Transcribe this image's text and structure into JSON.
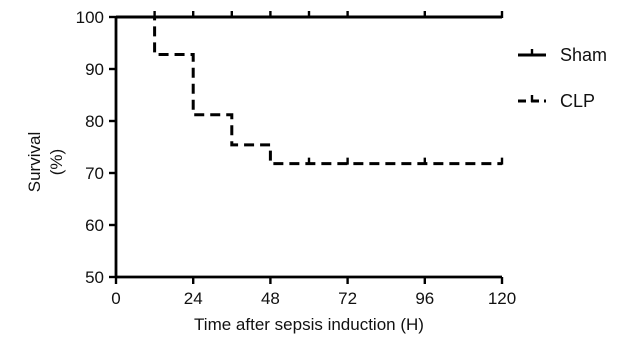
{
  "chart_data": {
    "type": "line",
    "subtype": "kaplan-meier step",
    "title": "",
    "xlabel": "Time after sepsis induction (H)",
    "ylabel_line1": "Survival",
    "ylabel_line2": "(%)",
    "xlim": [
      0,
      120
    ],
    "ylim": [
      50,
      100
    ],
    "x_ticks": [
      0,
      24,
      48,
      72,
      96,
      120
    ],
    "y_ticks": [
      50,
      60,
      70,
      80,
      90,
      100
    ],
    "grid": false,
    "legend_position": "right",
    "series": [
      {
        "name": "Sham",
        "style": "solid",
        "color": "#000000",
        "steps": [
          {
            "x": 0,
            "y": 100
          },
          {
            "x": 120,
            "y": 100
          }
        ],
        "censor_marks": [
          {
            "x": 12,
            "y": 100
          },
          {
            "x": 24,
            "y": 100
          },
          {
            "x": 36,
            "y": 100
          },
          {
            "x": 48,
            "y": 100
          },
          {
            "x": 60,
            "y": 100
          },
          {
            "x": 72,
            "y": 100
          },
          {
            "x": 96,
            "y": 100
          },
          {
            "x": 120,
            "y": 100
          }
        ]
      },
      {
        "name": "CLP",
        "style": "dashed",
        "color": "#000000",
        "steps": [
          {
            "x": 0,
            "y": 100
          },
          {
            "x": 12,
            "y": 100
          },
          {
            "x": 12,
            "y": 92.8
          },
          {
            "x": 24,
            "y": 92.8
          },
          {
            "x": 24,
            "y": 81.2
          },
          {
            "x": 36,
            "y": 81.2
          },
          {
            "x": 36,
            "y": 75.4
          },
          {
            "x": 48,
            "y": 75.4
          },
          {
            "x": 48,
            "y": 71.8
          },
          {
            "x": 120,
            "y": 71.8
          }
        ],
        "censor_marks": [
          {
            "x": 60,
            "y": 71.8
          },
          {
            "x": 72,
            "y": 71.8
          },
          {
            "x": 96,
            "y": 71.8
          },
          {
            "x": 120,
            "y": 71.8
          }
        ]
      }
    ]
  }
}
